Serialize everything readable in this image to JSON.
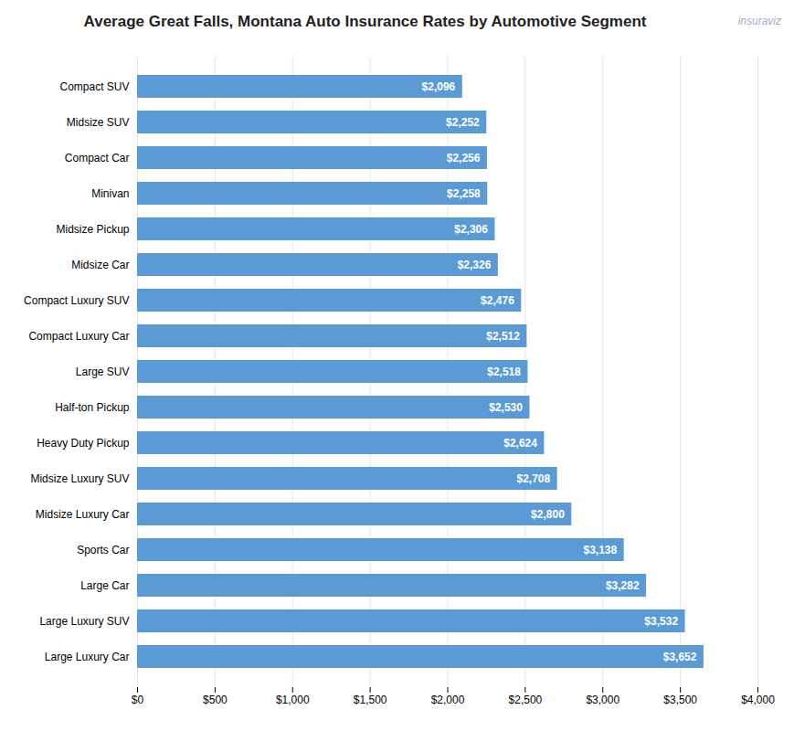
{
  "chart_data": {
    "type": "bar",
    "orientation": "horizontal",
    "title": "Average Great Falls, Montana Auto Insurance Rates by Automotive Segment",
    "annotations": [
      "insuraviz"
    ],
    "categories": [
      "Compact SUV",
      "Midsize SUV",
      "Compact Car",
      "Minivan",
      "Midsize Pickup",
      "Midsize Car",
      "Compact Luxury SUV",
      "Compact Luxury Car",
      "Large SUV",
      "Half-ton Pickup",
      "Heavy Duty Pickup",
      "Midsize Luxury SUV",
      "Midsize Luxury Car",
      "Sports Car",
      "Large Car",
      "Large Luxury SUV",
      "Large Luxury Car"
    ],
    "values": [
      2096,
      2252,
      2256,
      2258,
      2306,
      2326,
      2476,
      2512,
      2518,
      2530,
      2624,
      2708,
      2800,
      3138,
      3282,
      3532,
      3652
    ],
    "value_labels": [
      "$2,096",
      "$2,252",
      "$2,256",
      "$2,258",
      "$2,306",
      "$2,326",
      "$2,476",
      "$2,512",
      "$2,518",
      "$2,530",
      "$2,624",
      "$2,708",
      "$2,800",
      "$3,138",
      "$3,282",
      "$3,532",
      "$3,652"
    ],
    "data_labels": true,
    "color": "#5b9bd5",
    "xlim": [
      0,
      4000
    ],
    "xticks": [
      {
        "value": 0,
        "label": "$0"
      },
      {
        "value": 500,
        "label": "$500"
      },
      {
        "value": 1000,
        "label": "$1,000"
      },
      {
        "value": 1500,
        "label": "$1,500"
      },
      {
        "value": 2000,
        "label": "$2,000"
      },
      {
        "value": 2500,
        "label": "$2,500"
      },
      {
        "value": 3000,
        "label": "$3,000"
      },
      {
        "value": 3500,
        "label": "$3,500"
      },
      {
        "value": 4000,
        "label": "$4,000"
      }
    ],
    "grid": true
  }
}
